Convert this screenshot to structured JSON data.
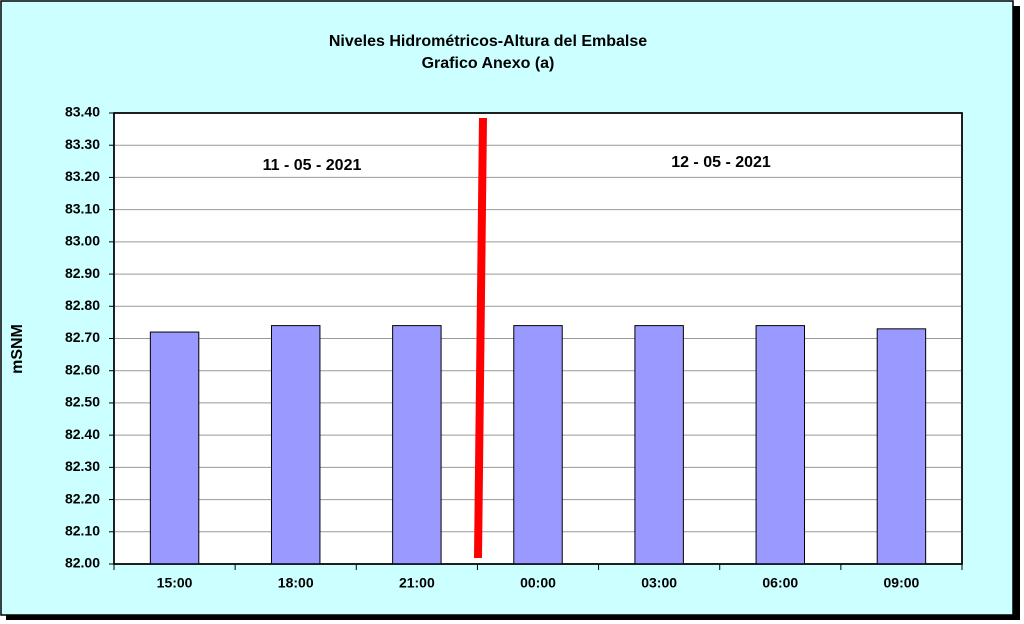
{
  "chart_data": {
    "type": "bar",
    "title": [
      "Niveles Hidrométricos-Altura del Embalse",
      "Grafico Anexo (a)"
    ],
    "y_label": "mSNM",
    "annotations": [
      "11 - 05 - 2021",
      "12 - 05 - 2021"
    ],
    "categories": [
      "15:00",
      "18:00",
      "21:00",
      "00:00",
      "03:00",
      "06:00",
      "09:00"
    ],
    "values": [
      82.72,
      82.74,
      82.74,
      82.74,
      82.74,
      82.74,
      82.73
    ],
    "color": "#9999ff",
    "ylim": [
      82.0,
      83.4
    ],
    "yticks": [
      {
        "value": 82.0,
        "label": "82.00"
      },
      {
        "value": 82.1,
        "label": "82.10"
      },
      {
        "value": 82.2,
        "label": "82.20"
      },
      {
        "value": 82.3,
        "label": "82.30"
      },
      {
        "value": 82.4,
        "label": "82.40"
      },
      {
        "value": 82.5,
        "label": "82.50"
      },
      {
        "value": 82.6,
        "label": "82.60"
      },
      {
        "value": 82.7,
        "label": "82.70"
      },
      {
        "value": 82.8,
        "label": "82.80"
      },
      {
        "value": 82.9,
        "label": "82.90"
      },
      {
        "value": 83.0,
        "label": "83.00"
      },
      {
        "value": 83.1,
        "label": "83.10"
      },
      {
        "value": 83.2,
        "label": "83.20"
      },
      {
        "value": 83.3,
        "label": "83.30"
      },
      {
        "value": 83.4,
        "label": "83.40"
      }
    ],
    "grid": true
  }
}
